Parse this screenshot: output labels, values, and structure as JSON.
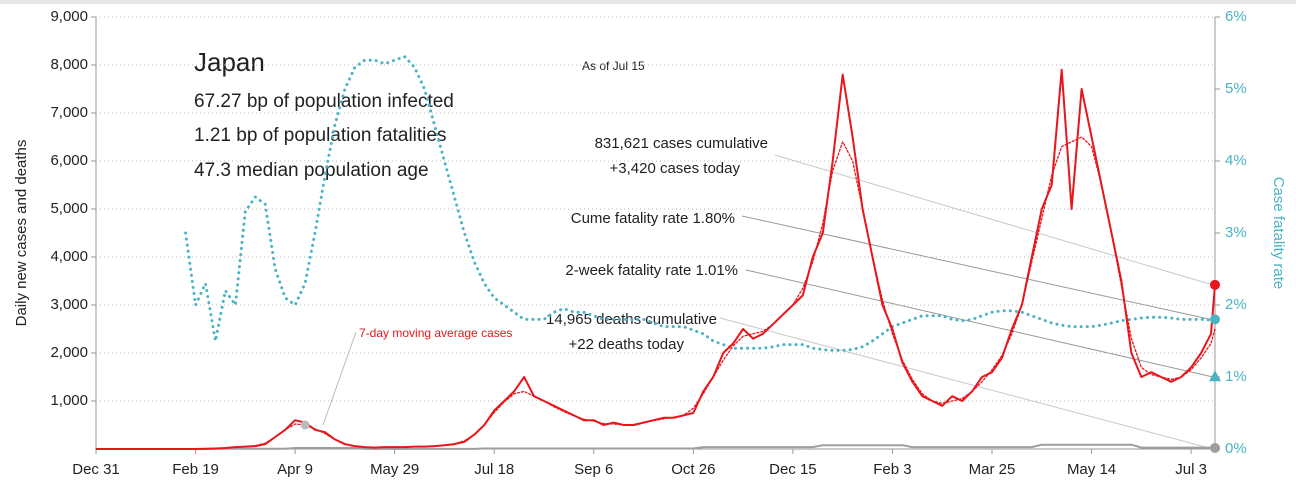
{
  "chart_data": {
    "type": "line",
    "x": [
      0,
      5,
      10,
      15,
      20,
      25,
      30,
      35,
      40,
      45,
      50,
      55,
      60,
      65,
      70,
      75,
      80,
      85,
      90,
      95,
      100,
      105,
      110,
      115,
      120,
      125,
      130,
      135,
      140,
      145,
      150,
      155,
      160,
      165,
      170,
      175,
      180,
      185,
      190,
      195,
      200,
      205,
      210,
      215,
      220,
      225,
      230,
      235,
      240,
      245,
      250,
      255,
      260,
      265,
      270,
      275,
      280,
      285,
      290,
      295,
      300,
      305,
      310,
      315,
      320,
      325,
      330,
      335,
      340,
      345,
      350,
      355,
      360,
      365,
      370,
      375,
      380,
      385,
      390,
      395,
      400,
      405,
      410,
      415,
      420,
      425,
      430,
      435,
      440,
      445,
      450,
      455,
      460,
      465,
      470,
      475,
      480,
      485,
      490,
      495,
      500,
      505,
      510,
      515,
      520,
      525,
      530,
      535,
      540,
      545,
      550,
      555,
      560,
      562
    ],
    "xlim": [
      0,
      562
    ],
    "xticks": [
      {
        "value": 0,
        "label": "Dec 31"
      },
      {
        "value": 50,
        "label": "Feb 19"
      },
      {
        "value": 100,
        "label": "Apr 9"
      },
      {
        "value": 150,
        "label": "May 29"
      },
      {
        "value": 200,
        "label": "Jul 18"
      },
      {
        "value": 250,
        "label": "Sep 6"
      },
      {
        "value": 300,
        "label": "Oct 26"
      },
      {
        "value": 350,
        "label": "Dec 15"
      },
      {
        "value": 400,
        "label": "Feb 3"
      },
      {
        "value": 450,
        "label": "Mar 25"
      },
      {
        "value": 500,
        "label": "May 14"
      },
      {
        "value": 550,
        "label": "Jul 3"
      }
    ],
    "ylim": [
      0,
      9000
    ],
    "yticks": [
      {
        "value": 1000,
        "label": "1,000"
      },
      {
        "value": 2000,
        "label": "2,000"
      },
      {
        "value": 3000,
        "label": "3,000"
      },
      {
        "value": 4000,
        "label": "4,000"
      },
      {
        "value": 5000,
        "label": "5,000"
      },
      {
        "value": 6000,
        "label": "6,000"
      },
      {
        "value": 7000,
        "label": "7,000"
      },
      {
        "value": 8000,
        "label": "8,000"
      },
      {
        "value": 9000,
        "label": "9,000"
      }
    ],
    "y2lim": [
      0,
      6
    ],
    "y2ticks": [
      {
        "value": 0,
        "label": "0%"
      },
      {
        "value": 1,
        "label": "1%"
      },
      {
        "value": 2,
        "label": "2%"
      },
      {
        "value": 3,
        "label": "3%"
      },
      {
        "value": 4,
        "label": "4%"
      },
      {
        "value": 5,
        "label": "5%"
      },
      {
        "value": 6,
        "label": "6%"
      }
    ],
    "ylabel": "Daily new cases and deaths",
    "y2label": "Case fatality rate",
    "grid": true,
    "series": [
      {
        "color": "#9e9e9e",
        "values": [
          0,
          0,
          0,
          0,
          0,
          0,
          0,
          0,
          0,
          0,
          0,
          0,
          5,
          5,
          5,
          5,
          5,
          5,
          5,
          5,
          20,
          20,
          20,
          20,
          20,
          20,
          20,
          2,
          2,
          2,
          2,
          2,
          2,
          2,
          2,
          2,
          2,
          2,
          2,
          10,
          10,
          10,
          10,
          10,
          10,
          10,
          10,
          10,
          10,
          10,
          10,
          10,
          10,
          10,
          10,
          10,
          10,
          10,
          10,
          10,
          10,
          40,
          40,
          40,
          40,
          40,
          40,
          40,
          40,
          40,
          40,
          40,
          40,
          80,
          80,
          80,
          80,
          80,
          80,
          80,
          80,
          80,
          40,
          40,
          40,
          40,
          40,
          40,
          40,
          40,
          40,
          40,
          40,
          40,
          40,
          90,
          90,
          90,
          90,
          90,
          90,
          90,
          90,
          90,
          90,
          30,
          30,
          30,
          30,
          30,
          30,
          30,
          30,
          22
        ]
      },
      {
        "color": "#e8161b",
        "values": [
          0,
          0,
          0,
          0,
          0,
          0,
          0,
          0,
          0,
          0,
          0,
          5,
          10,
          20,
          40,
          50,
          60,
          100,
          250,
          400,
          600,
          550,
          400,
          350,
          200,
          100,
          60,
          40,
          30,
          40,
          40,
          40,
          50,
          50,
          60,
          80,
          100,
          150,
          300,
          500,
          800,
          1000,
          1200,
          1500,
          1100,
          1000,
          900,
          800,
          700,
          600,
          600,
          500,
          550,
          500,
          500,
          550,
          600,
          650,
          650,
          700,
          750,
          1200,
          1500,
          2000,
          2200,
          2500,
          2300,
          2400,
          2600,
          2800,
          3000,
          3200,
          4000,
          4500,
          6000,
          7800,
          6500,
          5000,
          4000,
          3000,
          2500,
          1800,
          1400,
          1100,
          1000,
          900,
          1100,
          1000,
          1200,
          1500,
          1600,
          1900,
          2500,
          3000,
          4000,
          5000,
          5500,
          7900,
          5000,
          7500,
          6500,
          5500,
          4500,
          3500,
          2000,
          1500,
          1600,
          1500,
          1400,
          1500,
          1700,
          2000,
          2400,
          3420
        ]
      },
      {
        "color": "#e8161b",
        "dashed": true,
        "values": [
          0,
          0,
          0,
          0,
          0,
          0,
          0,
          0,
          0,
          0,
          0,
          5,
          10,
          20,
          35,
          50,
          70,
          120,
          250,
          400,
          520,
          500,
          420,
          320,
          200,
          110,
          60,
          40,
          35,
          38,
          40,
          42,
          48,
          52,
          60,
          80,
          110,
          170,
          300,
          500,
          760,
          980,
          1150,
          1200,
          1100,
          1000,
          880,
          780,
          690,
          620,
          580,
          530,
          520,
          505,
          510,
          550,
          590,
          630,
          660,
          700,
          850,
          1150,
          1500,
          1850,
          2150,
          2350,
          2400,
          2450,
          2600,
          2800,
          3000,
          3350,
          3900,
          4700,
          5800,
          6400,
          6000,
          5000,
          4000,
          3100,
          2400,
          1850,
          1450,
          1150,
          1000,
          950,
          1000,
          1050,
          1200,
          1400,
          1650,
          1950,
          2400,
          3000,
          3900,
          4800,
          5700,
          6300,
          6400,
          6500,
          6300,
          5500,
          4500,
          3400,
          2300,
          1700,
          1550,
          1500,
          1450,
          1500,
          1650,
          1900,
          2200,
          2500
        ]
      },
      {
        "color": "#4ab3c4",
        "dashed": true,
        "axis": "y2",
        "values": [
          null,
          null,
          null,
          null,
          null,
          null,
          null,
          null,
          null,
          3.0,
          2.0,
          2.3,
          1.5,
          2.2,
          2.0,
          3.3,
          3.5,
          3.4,
          2.5,
          2.1,
          2.0,
          2.3,
          3.0,
          3.8,
          4.5,
          5.0,
          5.3,
          5.4,
          5.4,
          5.35,
          5.4,
          5.45,
          5.3,
          5.0,
          4.5,
          4.0,
          3.5,
          3.0,
          2.6,
          2.3,
          2.1,
          2.0,
          1.9,
          1.8,
          1.8,
          1.8,
          1.9,
          1.95,
          1.9,
          1.9,
          1.85,
          1.8,
          1.8,
          1.8,
          1.8,
          1.8,
          1.75,
          1.7,
          1.7,
          1.7,
          1.65,
          1.6,
          1.5,
          1.45,
          1.4,
          1.4,
          1.4,
          1.4,
          1.42,
          1.45,
          1.45,
          1.45,
          1.4,
          1.38,
          1.37,
          1.37,
          1.38,
          1.42,
          1.5,
          1.6,
          1.7,
          1.75,
          1.8,
          1.85,
          1.85,
          1.85,
          1.8,
          1.78,
          1.8,
          1.85,
          1.9,
          1.92,
          1.92,
          1.9,
          1.85,
          1.8,
          1.75,
          1.72,
          1.7,
          1.7,
          1.7,
          1.72,
          1.75,
          1.78,
          1.8,
          1.82,
          1.83,
          1.83,
          1.82,
          1.8,
          1.8,
          1.8,
          1.79,
          1.8
        ]
      }
    ],
    "two_week_fatality_rate": 1.01,
    "title": "Japan",
    "info": [
      "67.27 bp of population infected",
      "1.21 bp of population fatalities",
      "47.3 median population age"
    ],
    "as_of": "As of Jul 15",
    "annotations": [
      "831,621 cases cumulative",
      "+3,420 cases today",
      "Cume fatality rate 1.80%",
      "2-week fatality rate 1.01%",
      "14,965 deaths cumulative",
      "+22 deaths today",
      "7-day moving average cases"
    ]
  }
}
